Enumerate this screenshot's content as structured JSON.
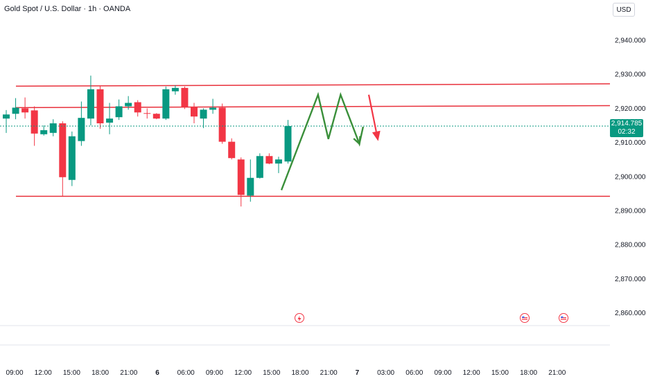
{
  "header": {
    "title": "Gold Spot / U.S. Dollar · 1h · OANDA",
    "currency": "USD"
  },
  "price_tag": {
    "value": "2,914.785",
    "countdown": "02:32",
    "color": "#089981"
  },
  "colors": {
    "bull": "#089981",
    "bear": "#f23645",
    "level_line": "#e8303b",
    "projection": "#3a8f3a",
    "arrow": "#f23645"
  },
  "chart_data": {
    "type": "candlestick",
    "title": "Gold Spot / U.S. Dollar · 1h · OANDA",
    "ylim": [
      2855,
      2948
    ],
    "y_ticks": [
      2860,
      2870,
      2880,
      2890,
      2900,
      2910,
      2920,
      2930,
      2940
    ],
    "y_tick_labels": [
      "2,860.000",
      "2,870.000",
      "2,880.000",
      "2,890.000",
      "2,900.000",
      "2,910.000",
      "2,920.000",
      "2,930.000",
      "2,940.000"
    ],
    "x_tick_labels": [
      "09:00",
      "12:00",
      "15:00",
      "18:00",
      "21:00",
      "6",
      "06:00",
      "09:00",
      "12:00",
      "15:00",
      "18:00",
      "21:00",
      "7",
      "03:00",
      "06:00",
      "09:00",
      "12:00",
      "15:00",
      "18:00",
      "21:00"
    ],
    "candles": [
      {
        "o": 2917.0,
        "h": 2919.5,
        "l": 2912.8,
        "c": 2918.2
      },
      {
        "o": 2918.4,
        "h": 2923.0,
        "l": 2916.8,
        "c": 2920.2
      },
      {
        "o": 2920.0,
        "h": 2923.2,
        "l": 2917.0,
        "c": 2918.8
      },
      {
        "o": 2919.4,
        "h": 2920.6,
        "l": 2909.0,
        "c": 2912.6
      },
      {
        "o": 2912.4,
        "h": 2915.0,
        "l": 2912.0,
        "c": 2913.6
      },
      {
        "o": 2912.8,
        "h": 2916.8,
        "l": 2911.8,
        "c": 2915.6
      },
      {
        "o": 2915.6,
        "h": 2916.2,
        "l": 2894.2,
        "c": 2899.8
      },
      {
        "o": 2899.0,
        "h": 2913.2,
        "l": 2897.2,
        "c": 2911.8
      },
      {
        "o": 2910.4,
        "h": 2922.0,
        "l": 2909.0,
        "c": 2917.2
      },
      {
        "o": 2917.0,
        "h": 2929.6,
        "l": 2915.0,
        "c": 2925.6
      },
      {
        "o": 2925.6,
        "h": 2926.6,
        "l": 2914.0,
        "c": 2915.6
      },
      {
        "o": 2915.8,
        "h": 2921.6,
        "l": 2912.4,
        "c": 2917.0
      },
      {
        "o": 2917.4,
        "h": 2922.6,
        "l": 2916.6,
        "c": 2920.6
      },
      {
        "o": 2920.6,
        "h": 2923.6,
        "l": 2919.6,
        "c": 2921.6
      },
      {
        "o": 2921.8,
        "h": 2922.4,
        "l": 2917.6,
        "c": 2918.8
      },
      {
        "o": 2918.6,
        "h": 2920.0,
        "l": 2917.0,
        "c": 2918.4
      },
      {
        "o": 2918.4,
        "h": 2918.6,
        "l": 2916.8,
        "c": 2917.0
      },
      {
        "o": 2917.0,
        "h": 2926.4,
        "l": 2916.6,
        "c": 2925.6
      },
      {
        "o": 2925.0,
        "h": 2926.8,
        "l": 2924.0,
        "c": 2926.0
      },
      {
        "o": 2926.0,
        "h": 2926.4,
        "l": 2919.8,
        "c": 2920.4
      },
      {
        "o": 2920.4,
        "h": 2921.6,
        "l": 2915.6,
        "c": 2917.6
      },
      {
        "o": 2917.0,
        "h": 2920.0,
        "l": 2914.2,
        "c": 2919.6
      },
      {
        "o": 2919.6,
        "h": 2922.8,
        "l": 2918.4,
        "c": 2920.2
      },
      {
        "o": 2920.2,
        "h": 2921.4,
        "l": 2909.6,
        "c": 2910.2
      },
      {
        "o": 2910.2,
        "h": 2911.2,
        "l": 2905.0,
        "c": 2905.4
      },
      {
        "o": 2905.0,
        "h": 2905.6,
        "l": 2891.2,
        "c": 2894.6
      },
      {
        "o": 2894.4,
        "h": 2905.0,
        "l": 2892.6,
        "c": 2899.6
      },
      {
        "o": 2899.6,
        "h": 2906.8,
        "l": 2899.4,
        "c": 2906.0
      },
      {
        "o": 2906.0,
        "h": 2906.8,
        "l": 2903.6,
        "c": 2903.8
      },
      {
        "o": 2903.8,
        "h": 2905.8,
        "l": 2901.0,
        "c": 2905.0
      },
      {
        "o": 2904.4,
        "h": 2916.6,
        "l": 2903.8,
        "c": 2914.8
      }
    ],
    "levels": [
      {
        "name": "upper-resistance",
        "start": 2926.5,
        "end": 2927.2
      },
      {
        "name": "mid-resistance",
        "start": 2920.2,
        "end": 2920.8
      },
      {
        "name": "support",
        "start": 2894.2,
        "end": 2894.2
      }
    ],
    "projection_path": [
      {
        "i": 29.3,
        "v": 2896.0
      },
      {
        "i": 33.2,
        "v": 2924.0
      },
      {
        "i": 34.3,
        "v": 2911.0
      },
      {
        "i": 35.6,
        "v": 2924.0
      },
      {
        "i": 37.6,
        "v": 2909.6
      },
      {
        "i": 38.0,
        "v": 2914.6
      }
    ],
    "arrow": {
      "from": {
        "i": 38.6,
        "v": 2924.0
      },
      "to": {
        "i": 39.6,
        "v": 2910.4
      }
    },
    "current_price": 2914.785
  }
}
